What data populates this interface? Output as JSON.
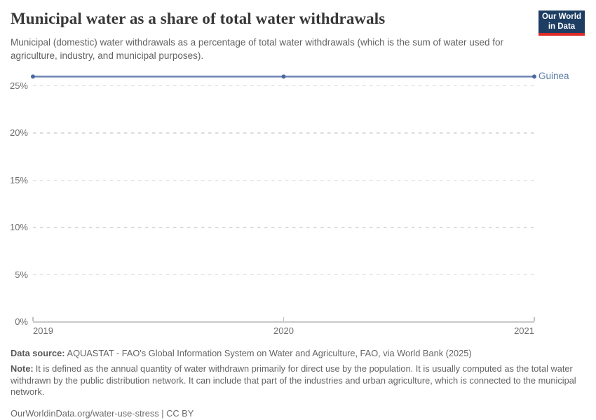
{
  "header": {
    "title": "Municipal water as a share of total water withdrawals",
    "subtitle": "Municipal (domestic) water withdrawals as a percentage of total water withdrawals (which is the sum of water used for agriculture, industry, and municipal purposes)."
  },
  "logo": {
    "line1": "Our World",
    "line2": "in Data",
    "bg_color": "#1d3d63",
    "bar_color": "#dc2a27"
  },
  "chart_data": {
    "type": "line",
    "title": "Municipal water as a share of total water withdrawals",
    "x": [
      2019,
      2020,
      2021
    ],
    "xtick_labels": [
      "2019",
      "2020",
      "2021"
    ],
    "yticks": [
      0,
      5,
      10,
      15,
      20,
      25
    ],
    "ytick_suffix": "%",
    "ylim": [
      0,
      26.5
    ],
    "grid": "horizontal-dashed",
    "legend_position": "end-of-line",
    "series": [
      {
        "name": "Guinea",
        "values": [
          25.97,
          25.97,
          25.97
        ],
        "line_color": "#6c85b3",
        "marker_color": "#4b68a1",
        "label_color": "#5b7ba8"
      }
    ]
  },
  "footer": {
    "datasource_label": "Data source:",
    "datasource_text": "AQUASTAT - FAO's Global Information System on Water and Agriculture, FAO, via World Bank (2025)",
    "note_label": "Note:",
    "note_text": "It is defined as the annual quantity of water withdrawn primarily for direct use by the population. It is usually computed as the total water withdrawn by the public distribution network. It can include that part of the industries and urban agriculture, which is connected to the municipal network.",
    "permalink": "OurWorldinData.org/water-use-stress | CC BY"
  }
}
